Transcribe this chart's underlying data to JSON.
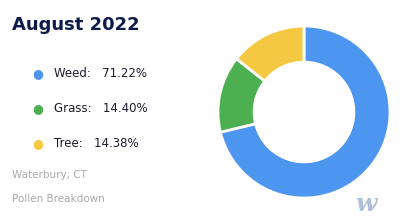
{
  "title": "August 2022",
  "subtitle_line1": "Waterbury, CT",
  "subtitle_line2": "Pollen Breakdown",
  "slices": [
    {
      "label": "Weed",
      "value": 71.22,
      "color": "#4D96F0"
    },
    {
      "label": "Grass",
      "value": 14.4,
      "color": "#4CAF50"
    },
    {
      "label": "Tree",
      "value": 14.38,
      "color": "#F5C842"
    }
  ],
  "background_color": "#ffffff",
  "title_color": "#0d1b4b",
  "legend_label_color": "#1a1a2e",
  "subtitle_color": "#aaaaaa",
  "watermark_color": "#b0bfd8",
  "start_angle": 90
}
